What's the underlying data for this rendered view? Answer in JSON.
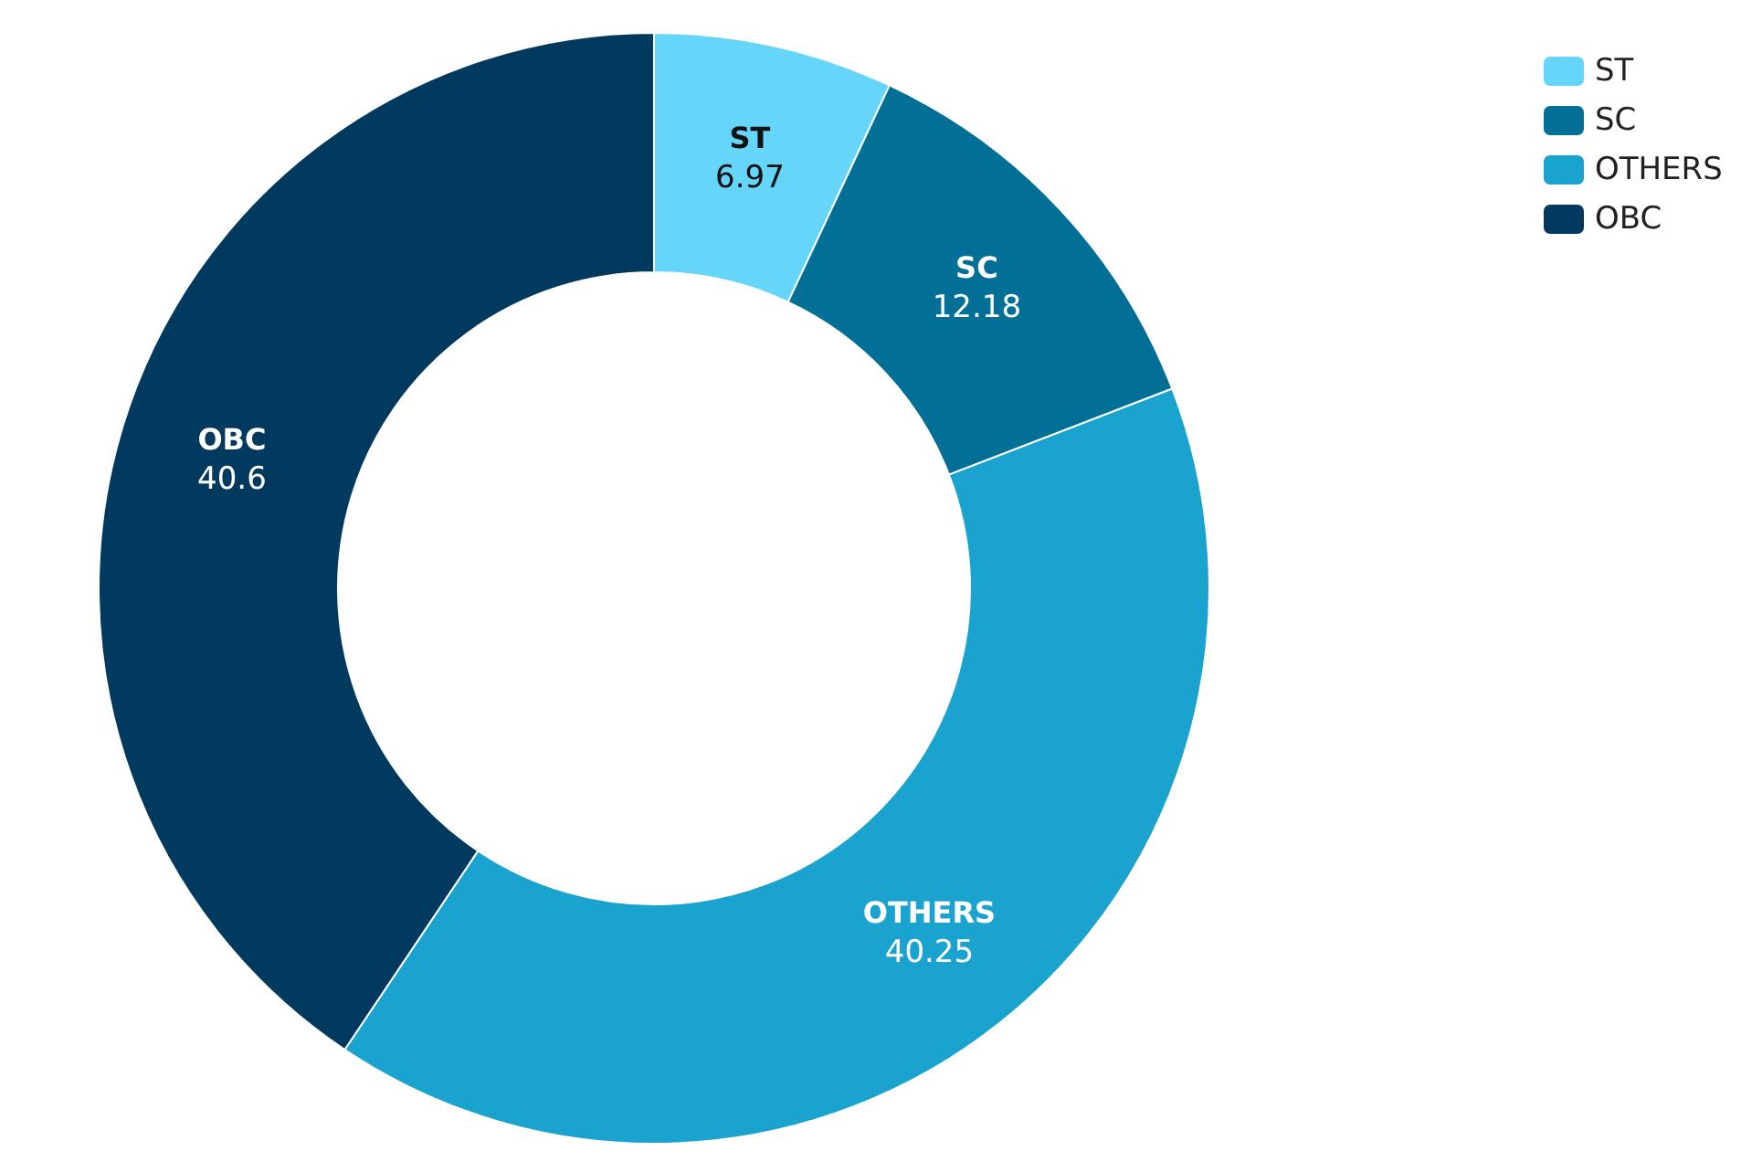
{
  "chart_data": {
    "type": "donut",
    "categories": [
      "ST",
      "SC",
      "OTHERS",
      "OBC"
    ],
    "values": [
      6.97,
      12.18,
      40.25,
      40.6
    ],
    "colors": [
      "#66d5fa",
      "#026f97",
      "#1ba3cf",
      "#013a5e"
    ],
    "data_labels": true,
    "legend": "top right"
  }
}
